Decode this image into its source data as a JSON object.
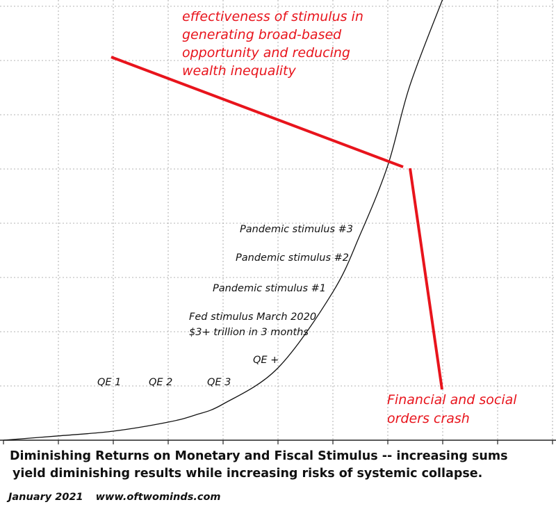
{
  "chart_data": {
    "type": "line",
    "title": "",
    "xlabel": "",
    "ylabel": "",
    "grid": true,
    "series": [
      {
        "x": [
          0,
          1,
          2,
          3,
          3.5,
          4,
          5,
          6,
          6.5,
          7,
          7.4,
          8
        ],
        "y": [
          0,
          0.12,
          0.25,
          0.5,
          0.7,
          1.0,
          2.0,
          4.1,
          5.7,
          7.6,
          9.8,
          12.2
        ]
      }
    ],
    "events": [
      "QE 1",
      "QE 2",
      "QE 3",
      "QE +",
      "Fed stimulus March 2020",
      "$3+ trillion in 3  months",
      "Pandemic stimulus #1",
      "Pandemic stimulus #2",
      "Pandemic stimulus #3"
    ],
    "annotations": [
      {
        "lines": [
          "effectiveness of stimulus in",
          "generating broad-based",
          "opportunity and reducing",
          "wealth inequality"
        ],
        "color": "#e8141c"
      },
      {
        "lines": [
          "Financial and social",
          "orders crash"
        ],
        "color": "#e8141c"
      }
    ]
  },
  "caption": {
    "line1": "Diminishing Returns on Monetary and Fiscal Stimulus -- increasing sums",
    "line2": "yield diminishing results while increasing risks of systemic collapse."
  },
  "footer": {
    "date": "January 2021",
    "site": "www.oftwominds.com"
  }
}
